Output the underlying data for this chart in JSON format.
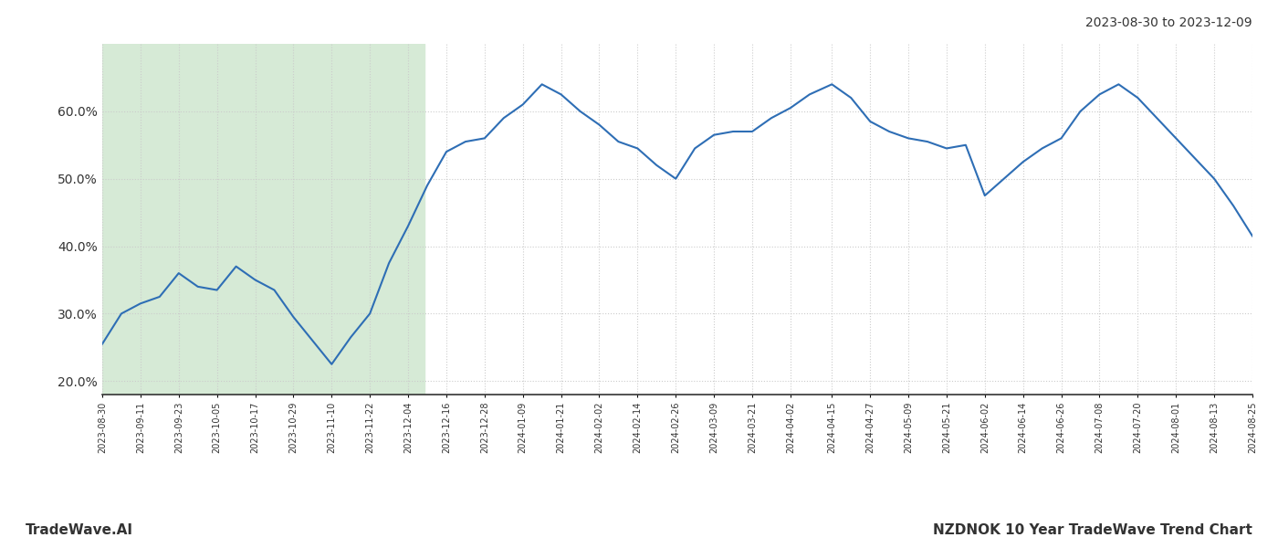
{
  "title_top_right": "2023-08-30 to 2023-12-09",
  "footer_left": "TradeWave.AI",
  "footer_right": "NZDNOK 10 Year TradeWave Trend Chart",
  "highlight_start": "2023-08-30",
  "highlight_end": "2023-12-09",
  "highlight_color": "#d6ead6",
  "line_color": "#2e6eb5",
  "line_width": 1.5,
  "background_color": "#ffffff",
  "ylim": [
    0.18,
    0.7
  ],
  "yticks": [
    0.2,
    0.3,
    0.4,
    0.5,
    0.6
  ],
  "ytick_labels": [
    "20.0%",
    "30.0%",
    "40.0%",
    "50.0%",
    "60.0%"
  ],
  "grid_color": "#cccccc",
  "grid_style": ":",
  "dates": [
    "2023-08-30",
    "2023-09-05",
    "2023-09-11",
    "2023-09-17",
    "2023-09-23",
    "2023-09-29",
    "2023-10-05",
    "2023-10-11",
    "2023-10-17",
    "2023-10-23",
    "2023-10-29",
    "2023-11-04",
    "2023-11-10",
    "2023-11-16",
    "2023-11-22",
    "2023-11-28",
    "2023-12-04",
    "2023-12-10",
    "2023-12-16",
    "2023-12-22",
    "2023-12-28",
    "2024-01-03",
    "2024-01-09",
    "2024-01-15",
    "2024-01-21",
    "2024-01-27",
    "2024-02-02",
    "2024-02-08",
    "2024-02-14",
    "2024-02-20",
    "2024-02-26",
    "2024-03-03",
    "2024-03-09",
    "2024-03-15",
    "2024-03-21",
    "2024-03-27",
    "2024-04-02",
    "2024-04-08",
    "2024-04-15",
    "2024-04-21",
    "2024-04-27",
    "2024-05-03",
    "2024-05-09",
    "2024-05-15",
    "2024-05-21",
    "2024-05-27",
    "2024-06-02",
    "2024-06-08",
    "2024-06-14",
    "2024-06-20",
    "2024-06-26",
    "2024-07-02",
    "2024-07-08",
    "2024-07-14",
    "2024-07-20",
    "2024-07-26",
    "2024-08-01",
    "2024-08-07",
    "2024-08-13",
    "2024-08-19",
    "2024-08-25"
  ],
  "values": [
    0.255,
    0.3,
    0.315,
    0.325,
    0.36,
    0.34,
    0.335,
    0.37,
    0.35,
    0.335,
    0.295,
    0.26,
    0.225,
    0.265,
    0.3,
    0.375,
    0.43,
    0.49,
    0.54,
    0.555,
    0.56,
    0.59,
    0.61,
    0.64,
    0.625,
    0.6,
    0.58,
    0.555,
    0.545,
    0.52,
    0.5,
    0.545,
    0.565,
    0.57,
    0.57,
    0.59,
    0.605,
    0.625,
    0.64,
    0.62,
    0.585,
    0.57,
    0.56,
    0.555,
    0.545,
    0.55,
    0.475,
    0.5,
    0.525,
    0.545,
    0.56,
    0.6,
    0.625,
    0.64,
    0.62,
    0.59,
    0.56,
    0.53,
    0.5,
    0.46,
    0.415
  ],
  "xtick_dates": [
    "2023-08-30",
    "2023-09-11",
    "2023-09-23",
    "2023-10-05",
    "2023-10-17",
    "2023-10-29",
    "2023-11-10",
    "2023-11-22",
    "2023-12-04",
    "2023-12-16",
    "2023-12-28",
    "2024-01-09",
    "2024-01-21",
    "2024-02-02",
    "2024-02-14",
    "2024-02-26",
    "2024-03-09",
    "2024-03-21",
    "2024-04-02",
    "2024-04-15",
    "2024-04-27",
    "2024-05-09",
    "2024-05-21",
    "2024-06-02",
    "2024-06-14",
    "2024-06-26",
    "2024-07-08",
    "2024-07-20",
    "2024-08-01",
    "2024-08-13",
    "2024-08-25"
  ]
}
